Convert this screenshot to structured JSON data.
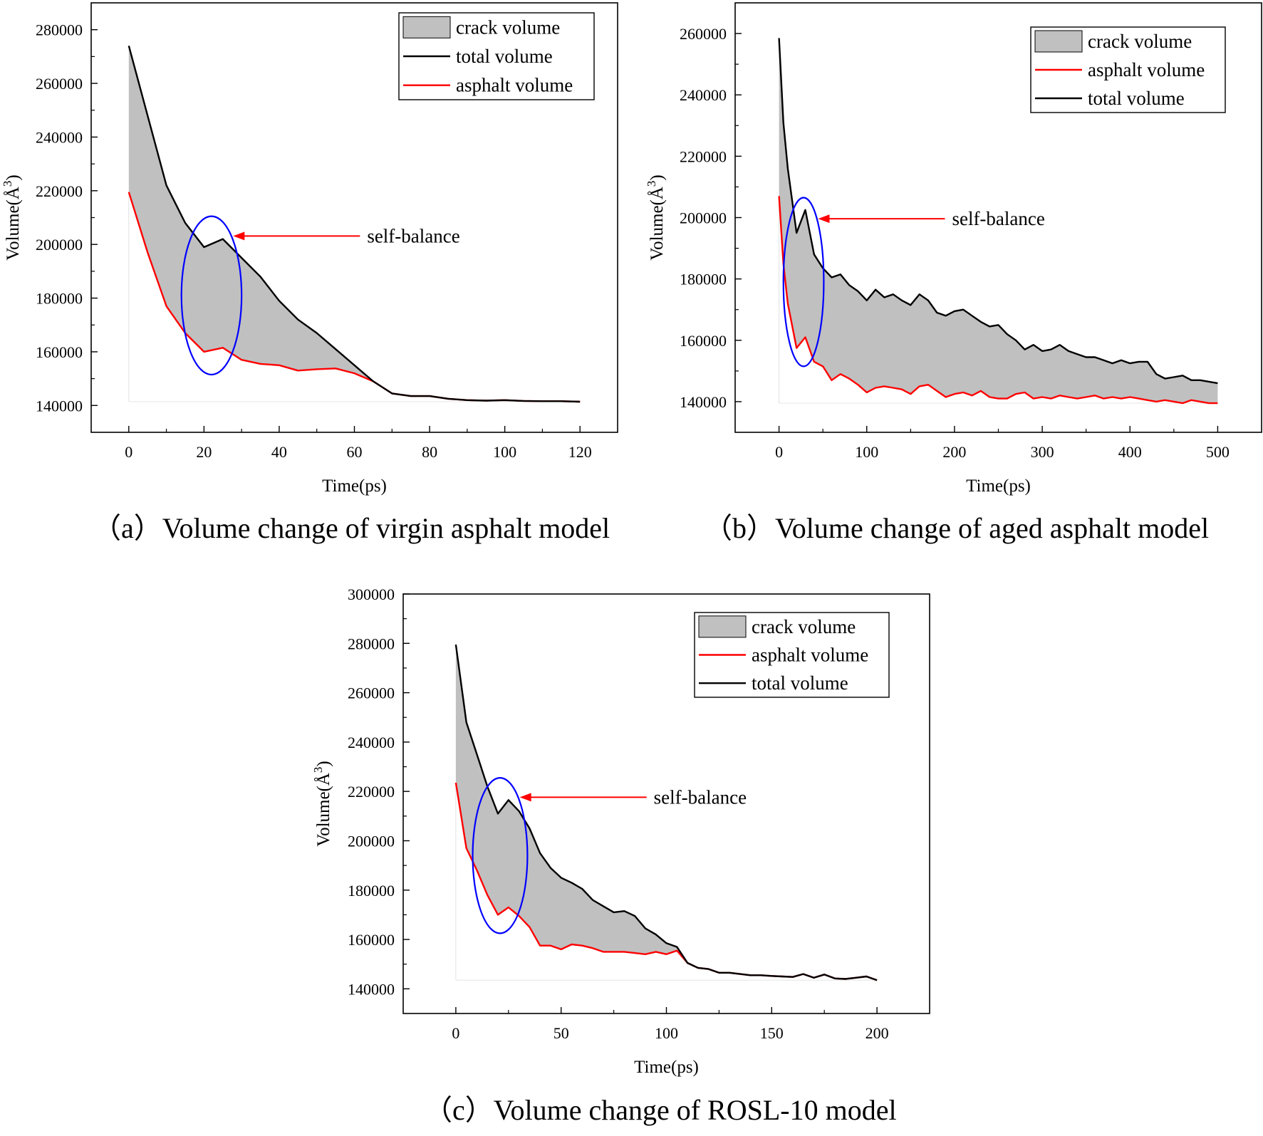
{
  "chart_data": [
    {
      "id": "a",
      "type": "area",
      "caption": "（a）Volume change of virgin asphalt model",
      "xlabel": "Time(ps)",
      "ylabel_main": "Volume(Å",
      "ylabel_sup": "3",
      "ylabel_close": ")",
      "xlim": [
        -10,
        130
      ],
      "ylim": [
        130000,
        290000
      ],
      "xticks": [
        0,
        20,
        40,
        60,
        80,
        100,
        120
      ],
      "yticks": [
        140000,
        160000,
        180000,
        200000,
        220000,
        240000,
        260000,
        280000
      ],
      "annotation": {
        "text": "self-balance",
        "ellipse_center": [
          22,
          181000
        ],
        "ellipse_radius": [
          8,
          29500
        ]
      },
      "legend": [
        "crack volume",
        "total volume",
        "asphalt volume"
      ],
      "series": [
        {
          "name": "total volume",
          "color": "#000000",
          "x": [
            0,
            5,
            10,
            15,
            20,
            25,
            30,
            35,
            40,
            45,
            50,
            55,
            60,
            65,
            70,
            75,
            80,
            85,
            90,
            95,
            100,
            105,
            110,
            115,
            120
          ],
          "y": [
            274000,
            248000,
            222000,
            208000,
            199000,
            202000,
            195000,
            188000,
            179000,
            172000,
            167000,
            161000,
            155000,
            149000,
            144500,
            143500,
            143500,
            142500,
            142000,
            141800,
            142000,
            141700,
            141600,
            141600,
            141400
          ]
        },
        {
          "name": "asphalt volume",
          "color": "#ff0000",
          "x": [
            0,
            5,
            10,
            15,
            20,
            25,
            30,
            35,
            40,
            45,
            50,
            55,
            60,
            65,
            70,
            75,
            80,
            85,
            90,
            95,
            100,
            105,
            110,
            115,
            120
          ],
          "y": [
            219500,
            197000,
            177000,
            167000,
            160000,
            161500,
            157000,
            155500,
            155000,
            153000,
            153500,
            153800,
            152000,
            149000,
            144500,
            143500,
            143500,
            142500,
            142000,
            141800,
            142000,
            141700,
            141600,
            141600,
            141400
          ]
        }
      ]
    },
    {
      "id": "b",
      "type": "area",
      "caption": "（b）Volume change of aged asphalt model",
      "xlabel": "Time(ps)",
      "ylabel_main": "Volume(Å",
      "ylabel_sup": "3",
      "ylabel_close": ")",
      "xlim": [
        -50,
        550
      ],
      "ylim": [
        130000,
        270000
      ],
      "xticks": [
        0,
        100,
        200,
        300,
        400,
        500
      ],
      "yticks": [
        140000,
        160000,
        180000,
        200000,
        220000,
        240000,
        260000
      ],
      "annotation": {
        "text": "self-balance",
        "ellipse_center": [
          28,
          179000
        ],
        "ellipse_radius": [
          23,
          27500
        ]
      },
      "legend": [
        "crack volume",
        "asphalt volume",
        "total volume"
      ],
      "series": [
        {
          "name": "total volume",
          "color": "#000000",
          "x": [
            0,
            5,
            10,
            20,
            30,
            40,
            50,
            60,
            70,
            80,
            90,
            100,
            110,
            120,
            130,
            140,
            150,
            160,
            170,
            180,
            190,
            200,
            210,
            220,
            230,
            240,
            250,
            260,
            270,
            280,
            290,
            300,
            310,
            320,
            330,
            340,
            350,
            360,
            370,
            380,
            390,
            400,
            410,
            420,
            430,
            440,
            450,
            460,
            470,
            480,
            490,
            500
          ],
          "y": [
            258500,
            231000,
            216000,
            195000,
            202500,
            188000,
            183500,
            180500,
            181500,
            178000,
            176000,
            173000,
            176500,
            174000,
            175000,
            173000,
            171500,
            175000,
            173000,
            169000,
            168000,
            169500,
            170000,
            168000,
            166000,
            164500,
            165000,
            162000,
            160000,
            157000,
            158500,
            156500,
            157000,
            158500,
            156500,
            155500,
            154500,
            154500,
            153500,
            152500,
            153500,
            152500,
            153000,
            153000,
            149000,
            147500,
            148000,
            148500,
            147000,
            147000,
            146500,
            146000
          ]
        },
        {
          "name": "asphalt volume",
          "color": "#ff0000",
          "x": [
            0,
            5,
            10,
            20,
            30,
            40,
            50,
            60,
            70,
            80,
            90,
            100,
            110,
            120,
            130,
            140,
            150,
            160,
            170,
            180,
            190,
            200,
            210,
            220,
            230,
            240,
            250,
            260,
            270,
            280,
            290,
            300,
            310,
            320,
            330,
            340,
            350,
            360,
            370,
            380,
            390,
            400,
            410,
            420,
            430,
            440,
            450,
            460,
            470,
            480,
            490,
            500
          ],
          "y": [
            207000,
            185000,
            172000,
            157500,
            161000,
            153000,
            151500,
            147000,
            149000,
            147500,
            145500,
            143000,
            144500,
            145000,
            144500,
            144000,
            142500,
            145000,
            145500,
            143500,
            141500,
            142500,
            143000,
            142000,
            143500,
            141500,
            141000,
            141000,
            142500,
            143000,
            141000,
            141500,
            141000,
            142000,
            141500,
            141000,
            141500,
            142000,
            141000,
            141500,
            141000,
            141500,
            141000,
            140500,
            140000,
            140500,
            140000,
            139500,
            140500,
            140000,
            139500,
            139500
          ]
        }
      ]
    },
    {
      "id": "c",
      "type": "area",
      "caption": "（c）Volume change of ROSL-10 model",
      "xlabel": "Time(ps)",
      "ylabel_main": "Volume(Å",
      "ylabel_sup": "3",
      "ylabel_close": ")",
      "xlim": [
        -25,
        225
      ],
      "ylim": [
        130000,
        300000
      ],
      "xticks": [
        0,
        50,
        100,
        150,
        200
      ],
      "yticks": [
        140000,
        160000,
        180000,
        200000,
        220000,
        240000,
        260000,
        280000,
        300000
      ],
      "annotation": {
        "text": "self-balance",
        "ellipse_center": [
          21,
          194000
        ],
        "ellipse_radius": [
          13,
          31500
        ]
      },
      "legend": [
        "crack volume",
        "asphalt volume",
        "total volume"
      ],
      "series": [
        {
          "name": "total volume",
          "color": "#000000",
          "x": [
            0,
            5,
            10,
            15,
            20,
            25,
            30,
            35,
            40,
            45,
            50,
            55,
            60,
            65,
            70,
            75,
            80,
            85,
            90,
            95,
            100,
            105,
            110,
            115,
            120,
            125,
            130,
            135,
            140,
            145,
            150,
            155,
            160,
            165,
            170,
            175,
            180,
            185,
            190,
            195,
            200
          ],
          "y": [
            279500,
            248000,
            235000,
            222000,
            211000,
            216500,
            212000,
            205000,
            195000,
            189000,
            185000,
            183000,
            180500,
            176000,
            173500,
            171000,
            171500,
            169500,
            164500,
            162000,
            158500,
            157000,
            150500,
            148500,
            148000,
            146500,
            146500,
            146000,
            145500,
            145500,
            145200,
            145000,
            144800,
            146000,
            144500,
            145800,
            144200,
            144000,
            144500,
            145000,
            143500
          ]
        },
        {
          "name": "asphalt volume",
          "color": "#ff0000",
          "x": [
            0,
            5,
            10,
            15,
            20,
            25,
            30,
            35,
            40,
            45,
            50,
            55,
            60,
            65,
            70,
            75,
            80,
            85,
            90,
            95,
            100,
            105,
            110,
            115,
            120,
            125,
            130,
            135,
            140,
            145,
            150,
            155,
            160,
            165,
            170,
            175,
            180,
            185,
            190,
            195,
            200
          ],
          "y": [
            223500,
            197000,
            188000,
            178000,
            170000,
            173000,
            169500,
            165000,
            157500,
            157500,
            156000,
            158000,
            157500,
            156500,
            155000,
            155000,
            155000,
            154500,
            154000,
            155000,
            154000,
            155500,
            150500,
            148500,
            148000,
            146500,
            146500,
            146000,
            145500,
            145500,
            145200,
            145000,
            144800,
            146000,
            144500,
            145800,
            144200,
            144000,
            144500,
            145000,
            143500
          ]
        }
      ]
    }
  ]
}
